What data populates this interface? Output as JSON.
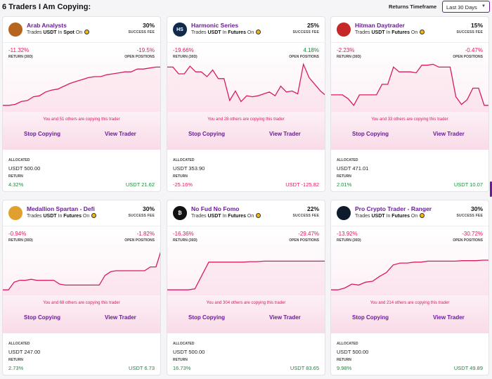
{
  "header": {
    "title": "6 Traders I Am Copying:",
    "timeframe_label": "Returns Timeframe",
    "timeframe_value": "Last 30 Days"
  },
  "colors": {
    "accent": "#6a1b9a",
    "line": "#d81b60",
    "positive": "#1b8a3a",
    "negative": "#d81b60"
  },
  "labels": {
    "success_fee": "SUCCESS FEE",
    "return_30d": "RETURN (30D)",
    "open_positions": "OPEN POSITIONS",
    "allocated": "ALLOCATED",
    "return": "RETURN",
    "stop_copying": "Stop Copying",
    "view_trader": "View Trader",
    "trades_word": "Trades",
    "in_word": "In",
    "on_word": "On"
  },
  "traders": [
    {
      "name": "Arab Analysts",
      "icon": "lion-avatar-icon",
      "avatar_bg": "#b5651d",
      "avatar_text": "",
      "asset": "USDT",
      "market": "Spot",
      "fee": "30%",
      "return_30d": "-11.32%",
      "open_positions": "-19.5%",
      "open_positive": false,
      "copying_text": "You and 51 others are copying this trader",
      "allocated": "USDT 500.00",
      "return_pct": "4.32%",
      "return_usd": "USDT 21.62",
      "return_positive": true,
      "chart": [
        0.12,
        0.12,
        0.14,
        0.2,
        0.22,
        0.3,
        0.32,
        0.4,
        0.44,
        0.46,
        0.52,
        0.58,
        0.62,
        0.66,
        0.7,
        0.72,
        0.72,
        0.76,
        0.78,
        0.8,
        0.82,
        0.82,
        0.88,
        0.88,
        0.9,
        0.92,
        0.92
      ]
    },
    {
      "name": "Harmonic Series",
      "icon": "hs-avatar-icon",
      "avatar_bg": "#0f2a4a",
      "avatar_text": "HS",
      "asset": "USDT",
      "market": "Futures",
      "fee": "25%",
      "return_30d": "-19.66%",
      "open_positions": "4.18%",
      "open_positive": true,
      "copying_text": "You and 28 others are copying this trader",
      "allocated": "USDT 353.90",
      "return_pct": "-25.16%",
      "return_usd": "USDT -125.82",
      "return_positive": false,
      "chart": [
        0.92,
        0.92,
        0.78,
        0.78,
        0.94,
        0.82,
        0.82,
        0.72,
        0.86,
        0.68,
        0.68,
        0.22,
        0.42,
        0.2,
        0.32,
        0.3,
        0.32,
        0.36,
        0.4,
        0.32,
        0.52,
        0.4,
        0.42,
        0.36,
        0.98,
        0.7,
        0.56,
        0.42,
        0.32
      ]
    },
    {
      "name": "Hitman Daytrader",
      "icon": "hitman-avatar-icon",
      "avatar_bg": "#c62828",
      "avatar_text": "",
      "asset": "USDT",
      "market": "Futures",
      "fee": "15%",
      "return_30d": "-2.23%",
      "open_positions": "-0.47%",
      "open_positive": false,
      "copying_text": "You and 33 others are copying this trader",
      "allocated": "USDT 471.01",
      "return_pct": "2.01%",
      "return_usd": "USDT 10.07",
      "return_positive": true,
      "chart": [
        0.34,
        0.34,
        0.34,
        0.26,
        0.12,
        0.34,
        0.34,
        0.34,
        0.34,
        0.56,
        0.56,
        0.92,
        0.82,
        0.82,
        0.82,
        0.8,
        0.96,
        0.96,
        0.98,
        0.92,
        0.92,
        0.92,
        0.3,
        0.14,
        0.24,
        0.48,
        0.48,
        0.12,
        0.12
      ]
    },
    {
      "name": "Medallion Spartan - Defi",
      "icon": "spartan-avatar-icon",
      "avatar_bg": "#e0a030",
      "avatar_text": "",
      "asset": "USDT",
      "market": "Futures",
      "fee": "30%",
      "return_30d": "-0.94%",
      "open_positions": "-1.82%",
      "open_positive": false,
      "copying_text": "You and 68 others are copying this trader",
      "allocated": "USDT 247.00",
      "return_pct": "2.73%",
      "return_usd": "USDT 6.73",
      "return_positive": true,
      "chart": [
        0.1,
        0.1,
        0.26,
        0.3,
        0.3,
        0.32,
        0.3,
        0.3,
        0.3,
        0.3,
        0.22,
        0.2,
        0.2,
        0.2,
        0.2,
        0.2,
        0.2,
        0.2,
        0.4,
        0.48,
        0.5,
        0.5,
        0.5,
        0.5,
        0.5,
        0.5,
        0.58,
        0.58,
        0.96
      ]
    },
    {
      "name": "No Fud No Fomo",
      "icon": "bitcoin-avatar-icon",
      "avatar_bg": "#111111",
      "avatar_text": "₿",
      "asset": "USDT",
      "market": "Futures",
      "fee": "22%",
      "return_30d": "-16.36%",
      "open_positions": "-29.47%",
      "open_positive": false,
      "copying_text": "You and 304 others are copying this trader",
      "allocated": "USDT 500.00",
      "return_pct": "16.73%",
      "return_usd": "USDT 83.65",
      "return_positive": true,
      "chart": [
        0.1,
        0.1,
        0.1,
        0.1,
        0.12,
        0.4,
        0.68,
        0.68,
        0.68,
        0.68,
        0.68,
        0.68,
        0.69,
        0.69,
        0.7,
        0.7,
        0.7,
        0.7,
        0.7,
        0.7,
        0.7,
        0.7,
        0.7,
        0.7
      ]
    },
    {
      "name": "Pro Crypto Trader - Ranger",
      "icon": "ranger-avatar-icon",
      "avatar_bg": "#0d1b2a",
      "avatar_text": "",
      "asset": "USDT",
      "market": "Futures",
      "fee": "30%",
      "return_30d": "-13.92%",
      "open_positions": "-30.72%",
      "open_positive": false,
      "copying_text": "You and 214 others are copying this trader",
      "allocated": "USDT 500.00",
      "return_pct": "9.98%",
      "return_usd": "USDT 49.89",
      "return_positive": true,
      "chart": [
        0.1,
        0.1,
        0.14,
        0.22,
        0.2,
        0.26,
        0.28,
        0.38,
        0.46,
        0.62,
        0.66,
        0.66,
        0.68,
        0.68,
        0.7,
        0.7,
        0.7,
        0.7,
        0.7,
        0.71,
        0.71,
        0.71,
        0.72,
        0.72
      ]
    }
  ]
}
